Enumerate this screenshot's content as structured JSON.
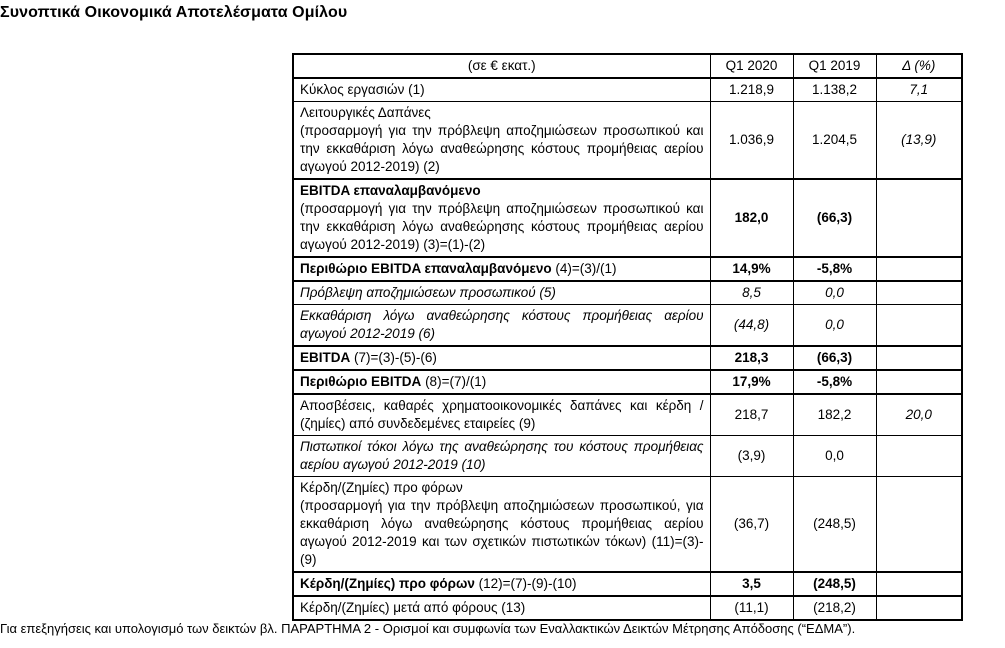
{
  "page": {
    "title": "Συνοπτικά Οικονομικά Αποτελέσματα Ομίλου",
    "footnote": "Για επεξηγήσεις και υπολογισμό των δεικτών βλ. ΠΑΡΑΡΤΗΜΑ 2 - Ορισμοί και συμφωνία των Εναλλακτικών Δεικτών Μέτρησης Απόδοσης (“ΕΔΜΑ”)."
  },
  "table": {
    "headers": {
      "label": "(σε € εκατ.)",
      "q1_2020": "Q1 2020",
      "q1_2019": "Q1 2019",
      "delta": "Δ (%)"
    },
    "rows": [
      {
        "lead": "",
        "rest": "Κύκλος εργασιών (1)",
        "v2020": "1.218,9",
        "v2019": "1.138,2",
        "delta": "7,1"
      },
      {
        "lead": "Λειτουργικές Δαπάνες",
        "rest": "(προσαρμογή για την πρόβλεψη αποζημιώσεων προσωπικού και την εκκαθάριση λόγω αναθεώρησης κόστους προμήθειας αερίου αγωγού 2012-2019) (2)",
        "v2020": "1.036,9",
        "v2019": "1.204,5",
        "delta": "(13,9)"
      },
      {
        "lead": "EBITDA επαναλαμβανόμενο",
        "rest": "(προσαρμογή για την πρόβλεψη αποζημιώσεων προσωπικού και την εκκαθάριση λόγω αναθεώρησης κόστους προμήθειας αερίου αγωγού 2012-2019) (3)=(1)-(2)",
        "v2020": "182,0",
        "v2019": "(66,3)",
        "delta": ""
      },
      {
        "lead": "Περιθώριο EBITDA επαναλαμβανόμενο",
        "rest": " (4)=(3)/(1)",
        "v2020": "14,9%",
        "v2019": "-5,8%",
        "delta": ""
      },
      {
        "lead": "",
        "rest": "Πρόβλεψη αποζημιώσεων προσωπικού (5)",
        "v2020": "8,5",
        "v2019": "0,0",
        "delta": ""
      },
      {
        "lead": "",
        "rest": "Εκκαθάριση λόγω αναθεώρησης κόστους προμήθειας αερίου αγωγού 2012-2019 (6)",
        "v2020": "(44,8)",
        "v2019": "0,0",
        "delta": ""
      },
      {
        "lead": "EBITDA",
        "rest": " (7)=(3)-(5)-(6)",
        "v2020": "218,3",
        "v2019": "(66,3)",
        "delta": ""
      },
      {
        "lead": "Περιθώριο EBITDA",
        "rest": " (8)=(7)/(1)",
        "v2020": "17,9%",
        "v2019": "-5,8%",
        "delta": ""
      },
      {
        "lead": "",
        "rest": "Αποσβέσεις, καθαρές χρηματοοικονομικές δαπάνες και κέρδη / (ζημίες) από συνδεδεμένες εταιρείες (9)",
        "v2020": "218,7",
        "v2019": "182,2",
        "delta": "20,0"
      },
      {
        "lead": "",
        "rest": "Πιστωτικοί τόκοι λόγω της αναθεώρησης του κόστους προμήθειας αερίου αγωγού 2012-2019 (10)",
        "v2020": "(3,9)",
        "v2019": "0,0",
        "delta": ""
      },
      {
        "lead": "Κέρδη/(Ζημίες) προ φόρων",
        "rest": "(προσαρμογή για την πρόβλεψη αποζημιώσεων προσωπικού, για εκκαθάριση λόγω αναθεώρησης κόστους προμήθειας αερίου αγωγού 2012-2019 και των σχετικών πιστωτικών τόκων) (11)=(3)-(9)",
        "v2020": "(36,7)",
        "v2019": "(248,5)",
        "delta": ""
      },
      {
        "lead": "Κέρδη/(Ζημίες) προ φόρων",
        "rest": " (12)=(7)-(9)-(10)",
        "v2020": "3,5",
        "v2019": "(248,5)",
        "delta": ""
      },
      {
        "lead": "",
        "rest": "Κέρδη/(Ζημίες) μετά από φόρους (13)",
        "v2020": "(11,1)",
        "v2019": "(218,2)",
        "delta": ""
      }
    ]
  }
}
